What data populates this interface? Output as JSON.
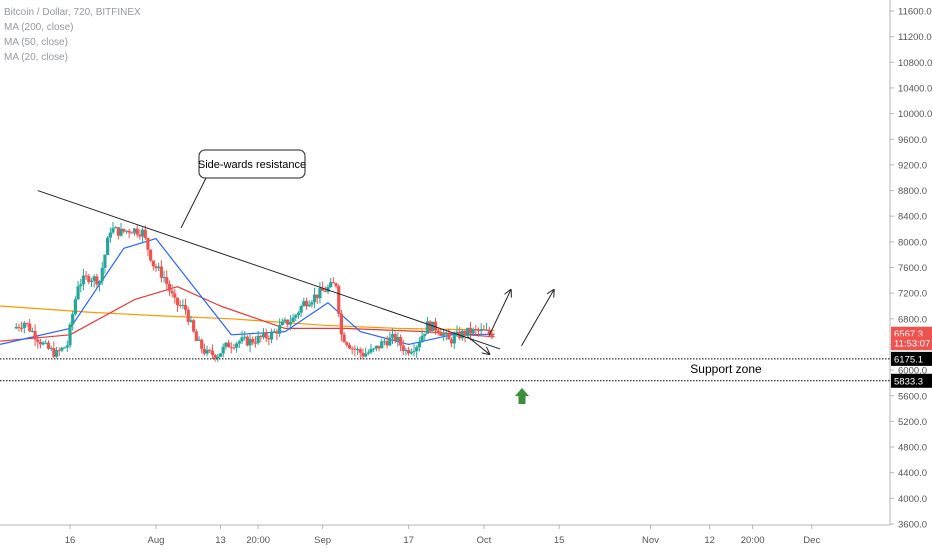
{
  "legend": {
    "symbol": "Bitcoin / Dollar, 720, BITFINEX",
    "ma200": "MA (200, close)",
    "ma50": "MA (50, close)",
    "ma20": "MA (20, close)"
  },
  "colors": {
    "up": "#26a69a",
    "down": "#ef5350",
    "ma200": "#ff9800",
    "ma50": "#e53935",
    "ma20": "#2962ff",
    "arrow_up": "#3a8f3a",
    "axis_text": "#555555",
    "trendline": "#222222"
  },
  "chart_data": {
    "type": "candlestick",
    "title": "Bitcoin / Dollar, 720, BITFINEX",
    "y_axis": {
      "range": [
        3600,
        11800
      ],
      "ticks": [
        "11600.0",
        "11200.0",
        "10800.0",
        "10400.0",
        "10000.0",
        "9600.0",
        "9200.0",
        "8800.0",
        "8400.0",
        "8000.0",
        "7600.0",
        "7200.0",
        "6800.0",
        "6400.0",
        "6000.0",
        "5600.0",
        "5200.0",
        "4800.0",
        "4400.0",
        "4000.0",
        "3600.0"
      ]
    },
    "x_axis": {
      "ticks": [
        {
          "label": "16",
          "date": "2018-07-16"
        },
        {
          "label": "Aug",
          "date": "2018-08-01"
        },
        {
          "label": "13",
          "date": "2018-08-13"
        },
        {
          "label": "20:00",
          "date": "2018-08-20"
        },
        {
          "label": "Sep",
          "date": "2018-09-01"
        },
        {
          "label": "17",
          "date": "2018-09-17"
        },
        {
          "label": "Oct",
          "date": "2018-10-01"
        },
        {
          "label": "15",
          "date": "2018-10-15"
        },
        {
          "label": "Nov",
          "date": "2018-11-01"
        },
        {
          "label": "12",
          "date": "2018-11-12"
        },
        {
          "label": "20:00",
          "date": "2018-11-20"
        },
        {
          "label": "Dec",
          "date": "2018-12-01"
        }
      ]
    },
    "price_labels": [
      {
        "text": "6567.3",
        "value": 6567.3,
        "color": "#ef5350"
      },
      {
        "text": "11:53:07",
        "value": 6420,
        "color": "#ef5350"
      },
      {
        "text": "6175.1",
        "value": 6175.1,
        "color": "#000000"
      },
      {
        "text": "5833.3",
        "value": 5833.3,
        "color": "#000000"
      }
    ],
    "support_levels": [
      6175.1,
      5833.3
    ],
    "annotations": {
      "callout": "Side-wards resistance",
      "support_zone": "Support zone"
    },
    "trendline": {
      "start": [
        "2018-07-10",
        8800
      ],
      "end": [
        "2018-10-04",
        6330
      ]
    },
    "arrows": [
      {
        "from": [
          "2018-09-28",
          6520
        ],
        "to": [
          "2018-10-02",
          6250
        ]
      },
      {
        "from": [
          "2018-10-02",
          6540
        ],
        "to": [
          "2018-10-06",
          7250
        ]
      },
      {
        "from": [
          "2018-10-08",
          6380
        ],
        "to": [
          "2018-10-14",
          7250
        ]
      }
    ],
    "ohlc_daily_approx": [
      [
        "2018-07-06",
        6650
      ],
      [
        "2018-07-08",
        6750
      ],
      [
        "2018-07-10",
        6550
      ],
      [
        "2018-07-12",
        6350
      ],
      [
        "2018-07-14",
        6250
      ],
      [
        "2018-07-16",
        6400
      ],
      [
        "2018-07-18",
        7350
      ],
      [
        "2018-07-20",
        7450
      ],
      [
        "2018-07-22",
        7400
      ],
      [
        "2018-07-24",
        8200
      ],
      [
        "2018-07-26",
        8150
      ],
      [
        "2018-07-28",
        8200
      ],
      [
        "2018-07-30",
        8150
      ],
      [
        "2018-08-01",
        7650
      ],
      [
        "2018-08-03",
        7450
      ],
      [
        "2018-08-05",
        7050
      ],
      [
        "2018-08-07",
        6950
      ],
      [
        "2018-08-09",
        6450
      ],
      [
        "2018-08-11",
        6250
      ],
      [
        "2018-08-13",
        6250
      ],
      [
        "2018-08-15",
        6400
      ],
      [
        "2018-08-17",
        6450
      ],
      [
        "2018-08-19",
        6450
      ],
      [
        "2018-08-21",
        6500
      ],
      [
        "2018-08-23",
        6550
      ],
      [
        "2018-08-25",
        6700
      ],
      [
        "2018-08-27",
        6800
      ],
      [
        "2018-08-29",
        7050
      ],
      [
        "2018-08-31",
        7150
      ],
      [
        "2018-09-02",
        7250
      ],
      [
        "2018-09-04",
        7350
      ],
      [
        "2018-09-05",
        6550
      ],
      [
        "2018-09-07",
        6350
      ],
      [
        "2018-09-09",
        6250
      ],
      [
        "2018-09-11",
        6300
      ],
      [
        "2018-09-13",
        6450
      ],
      [
        "2018-09-15",
        6500
      ],
      [
        "2018-09-17",
        6300
      ],
      [
        "2018-09-19",
        6400
      ],
      [
        "2018-09-21",
        6700
      ],
      [
        "2018-09-23",
        6650
      ],
      [
        "2018-09-25",
        6450
      ],
      [
        "2018-09-27",
        6550
      ],
      [
        "2018-09-29",
        6600
      ],
      [
        "2018-10-01",
        6600
      ],
      [
        "2018-10-03",
        6567
      ]
    ],
    "ma200": [
      [
        "2018-07-03",
        7000
      ],
      [
        "2018-07-20",
        6900
      ],
      [
        "2018-08-01",
        6850
      ],
      [
        "2018-08-15",
        6800
      ],
      [
        "2018-09-01",
        6700
      ],
      [
        "2018-09-15",
        6650
      ],
      [
        "2018-10-03",
        6620
      ]
    ],
    "ma50": [
      [
        "2018-07-03",
        6450
      ],
      [
        "2018-07-16",
        6550
      ],
      [
        "2018-07-28",
        7100
      ],
      [
        "2018-08-05",
        7300
      ],
      [
        "2018-08-13",
        7000
      ],
      [
        "2018-08-25",
        6650
      ],
      [
        "2018-09-05",
        6650
      ],
      [
        "2018-09-20",
        6600
      ],
      [
        "2018-10-03",
        6520
      ]
    ],
    "ma20": [
      [
        "2018-07-03",
        6400
      ],
      [
        "2018-07-16",
        6650
      ],
      [
        "2018-07-26",
        7900
      ],
      [
        "2018-08-01",
        8050
      ],
      [
        "2018-08-08",
        7300
      ],
      [
        "2018-08-15",
        6550
      ],
      [
        "2018-08-25",
        6600
      ],
      [
        "2018-09-02",
        7050
      ],
      [
        "2018-09-08",
        6600
      ],
      [
        "2018-09-17",
        6400
      ],
      [
        "2018-09-25",
        6550
      ],
      [
        "2018-10-03",
        6560
      ]
    ]
  }
}
